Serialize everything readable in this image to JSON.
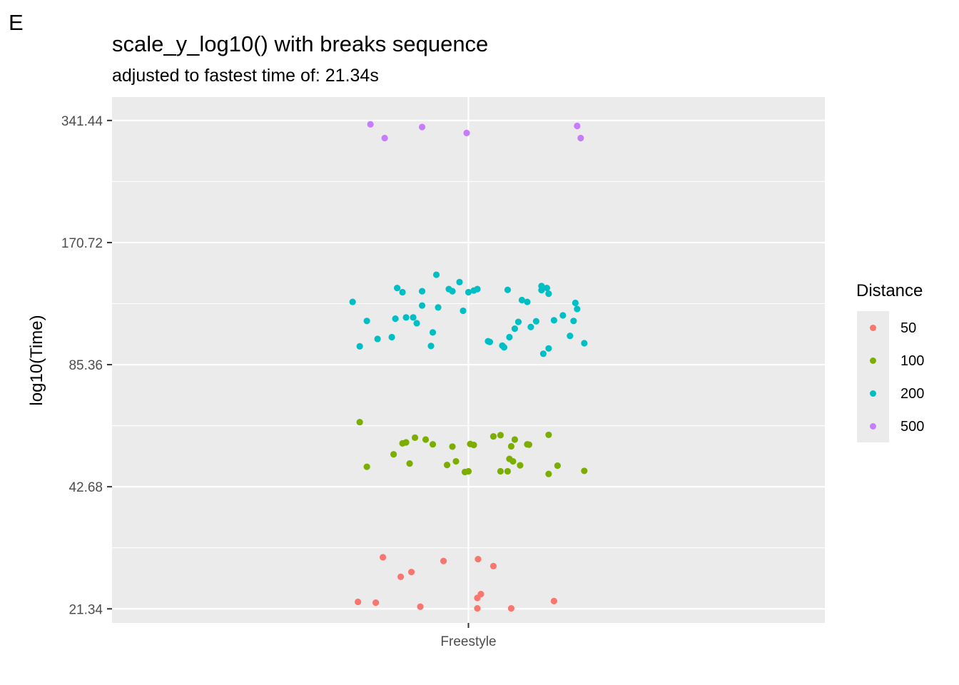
{
  "panel_label": "E",
  "colors": {
    "panel_bg": "#ebebeb",
    "grid": "#ffffff",
    "d50": "#f8766d",
    "d100": "#7cae00",
    "d200": "#00bfc4",
    "d500": "#c77cff"
  },
  "chart_data": {
    "type": "scatter",
    "title": "scale_y_log10() with breaks sequence",
    "subtitle": "adjusted to fastest time of: 21.34s",
    "xlabel": "",
    "ylabel": "log10(Time)",
    "y_scale": "log10",
    "ylim": [
      19.7,
      390
    ],
    "y_breaks": [
      21.34,
      42.68,
      85.36,
      170.72,
      341.44
    ],
    "y_tick_labels": [
      "21.34",
      "42.68",
      "85.36",
      "170.72",
      "341.44"
    ],
    "categories": [
      "Freestyle"
    ],
    "x_jitter_range": [
      -0.5,
      0.5
    ],
    "grid": true,
    "legend": {
      "title": "Distance",
      "position": "right",
      "entries": [
        "50",
        "100",
        "200",
        "500"
      ]
    },
    "series": [
      {
        "name": "50",
        "color_key": "d50",
        "points": [
          {
            "jitter": -0.31,
            "y": 22.2
          },
          {
            "jitter": -0.26,
            "y": 22.1
          },
          {
            "jitter": -0.24,
            "y": 28.6
          },
          {
            "jitter": -0.19,
            "y": 25.6
          },
          {
            "jitter": -0.16,
            "y": 26.3
          },
          {
            "jitter": -0.135,
            "y": 21.6
          },
          {
            "jitter": -0.07,
            "y": 28.0
          },
          {
            "jitter": 0.025,
            "y": 22.7
          },
          {
            "jitter": 0.025,
            "y": 21.4
          },
          {
            "jitter": 0.027,
            "y": 28.3
          },
          {
            "jitter": 0.035,
            "y": 23.2
          },
          {
            "jitter": 0.07,
            "y": 27.2
          },
          {
            "jitter": 0.12,
            "y": 21.4
          },
          {
            "jitter": 0.24,
            "y": 22.3
          }
        ]
      },
      {
        "name": "100",
        "color_key": "d100",
        "points": [
          {
            "jitter": -0.305,
            "y": 61.6
          },
          {
            "jitter": -0.285,
            "y": 47.8
          },
          {
            "jitter": -0.21,
            "y": 51.3
          },
          {
            "jitter": -0.185,
            "y": 54.6
          },
          {
            "jitter": -0.175,
            "y": 54.9
          },
          {
            "jitter": -0.165,
            "y": 48.7
          },
          {
            "jitter": -0.15,
            "y": 56.4
          },
          {
            "jitter": -0.12,
            "y": 55.8
          },
          {
            "jitter": -0.1,
            "y": 54.3
          },
          {
            "jitter": -0.06,
            "y": 48.3
          },
          {
            "jitter": -0.045,
            "y": 53.6
          },
          {
            "jitter": -0.035,
            "y": 49.3
          },
          {
            "jitter": -0.01,
            "y": 46.4
          },
          {
            "jitter": 0.0,
            "y": 46.6
          },
          {
            "jitter": 0.005,
            "y": 54.4
          },
          {
            "jitter": 0.015,
            "y": 54.1
          },
          {
            "jitter": 0.07,
            "y": 56.8
          },
          {
            "jitter": 0.09,
            "y": 46.6
          },
          {
            "jitter": 0.09,
            "y": 57.2
          },
          {
            "jitter": 0.11,
            "y": 46.6
          },
          {
            "jitter": 0.115,
            "y": 50.0
          },
          {
            "jitter": 0.12,
            "y": 53.7
          },
          {
            "jitter": 0.125,
            "y": 49.3
          },
          {
            "jitter": 0.13,
            "y": 55.8
          },
          {
            "jitter": 0.145,
            "y": 48.2
          },
          {
            "jitter": 0.165,
            "y": 54.3
          },
          {
            "jitter": 0.17,
            "y": 54.2
          },
          {
            "jitter": 0.225,
            "y": 57.3
          },
          {
            "jitter": 0.225,
            "y": 45.9
          },
          {
            "jitter": 0.25,
            "y": 48.1
          },
          {
            "jitter": 0.325,
            "y": 46.7
          }
        ]
      },
      {
        "name": "200",
        "color_key": "d200",
        "points": [
          {
            "jitter": -0.325,
            "y": 121.9
          },
          {
            "jitter": -0.305,
            "y": 94.7
          },
          {
            "jitter": -0.285,
            "y": 109.4
          },
          {
            "jitter": -0.255,
            "y": 98.8
          },
          {
            "jitter": -0.215,
            "y": 99.8
          },
          {
            "jitter": -0.205,
            "y": 110.8
          },
          {
            "jitter": -0.2,
            "y": 131.9
          },
          {
            "jitter": -0.185,
            "y": 128.8
          },
          {
            "jitter": -0.175,
            "y": 111.6
          },
          {
            "jitter": -0.155,
            "y": 111.6
          },
          {
            "jitter": -0.145,
            "y": 108.0
          },
          {
            "jitter": -0.13,
            "y": 129.5
          },
          {
            "jitter": -0.13,
            "y": 119.4
          },
          {
            "jitter": -0.105,
            "y": 94.9
          },
          {
            "jitter": -0.1,
            "y": 102.5
          },
          {
            "jitter": -0.09,
            "y": 142.2
          },
          {
            "jitter": -0.085,
            "y": 118.1
          },
          {
            "jitter": -0.055,
            "y": 131.1
          },
          {
            "jitter": -0.045,
            "y": 129.5
          },
          {
            "jitter": -0.025,
            "y": 136.4
          },
          {
            "jitter": -0.015,
            "y": 115.9
          },
          {
            "jitter": 0.0,
            "y": 128.8
          },
          {
            "jitter": 0.015,
            "y": 130.0
          },
          {
            "jitter": 0.025,
            "y": 131.1
          },
          {
            "jitter": 0.055,
            "y": 97.5
          },
          {
            "jitter": 0.06,
            "y": 97.1
          },
          {
            "jitter": 0.095,
            "y": 95.1
          },
          {
            "jitter": 0.1,
            "y": 94.2
          },
          {
            "jitter": 0.11,
            "y": 130.5
          },
          {
            "jitter": 0.115,
            "y": 99.8
          },
          {
            "jitter": 0.13,
            "y": 104.7
          },
          {
            "jitter": 0.14,
            "y": 108.8
          },
          {
            "jitter": 0.15,
            "y": 123.2
          },
          {
            "jitter": 0.165,
            "y": 121.9
          },
          {
            "jitter": 0.175,
            "y": 105.7
          },
          {
            "jitter": 0.19,
            "y": 109.2
          },
          {
            "jitter": 0.205,
            "y": 133.4
          },
          {
            "jitter": 0.205,
            "y": 130.3
          },
          {
            "jitter": 0.21,
            "y": 90.8
          },
          {
            "jitter": 0.22,
            "y": 131.9
          },
          {
            "jitter": 0.225,
            "y": 127.7
          },
          {
            "jitter": 0.225,
            "y": 93.6
          },
          {
            "jitter": 0.24,
            "y": 109.8
          },
          {
            "jitter": 0.265,
            "y": 112.9
          },
          {
            "jitter": 0.285,
            "y": 100.5
          },
          {
            "jitter": 0.295,
            "y": 109.4
          },
          {
            "jitter": 0.3,
            "y": 121.2
          },
          {
            "jitter": 0.305,
            "y": 117.1
          },
          {
            "jitter": 0.325,
            "y": 96.4
          }
        ]
      },
      {
        "name": "500",
        "color_key": "d500",
        "points": [
          {
            "jitter": -0.275,
            "y": 334.0
          },
          {
            "jitter": -0.235,
            "y": 309.0
          },
          {
            "jitter": -0.13,
            "y": 329.0
          },
          {
            "jitter": -0.005,
            "y": 318.0
          },
          {
            "jitter": 0.305,
            "y": 331.0
          },
          {
            "jitter": 0.315,
            "y": 309.0
          }
        ]
      }
    ]
  }
}
